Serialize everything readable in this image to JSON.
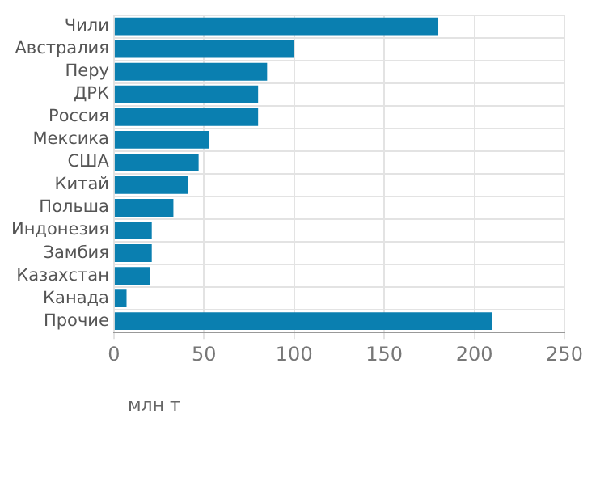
{
  "chart_data": {
    "type": "bar",
    "orientation": "horizontal",
    "xlabel": "млн т",
    "categories": [
      "Чили",
      "Австралия",
      "Перу",
      "ДРК",
      "Россия",
      "Мексика",
      "США",
      "Китай",
      "Польша",
      "Индонезия",
      "Замбия",
      "Казахстан",
      "Канада",
      "Прочие"
    ],
    "values": [
      180,
      100,
      85,
      80,
      80,
      53,
      47,
      41,
      33,
      21,
      21,
      20,
      7,
      210
    ],
    "color": "#0a7fb0",
    "xlim": [
      0,
      250
    ],
    "xticks": [
      0,
      50,
      100,
      150,
      200,
      250
    ],
    "grid": true
  }
}
